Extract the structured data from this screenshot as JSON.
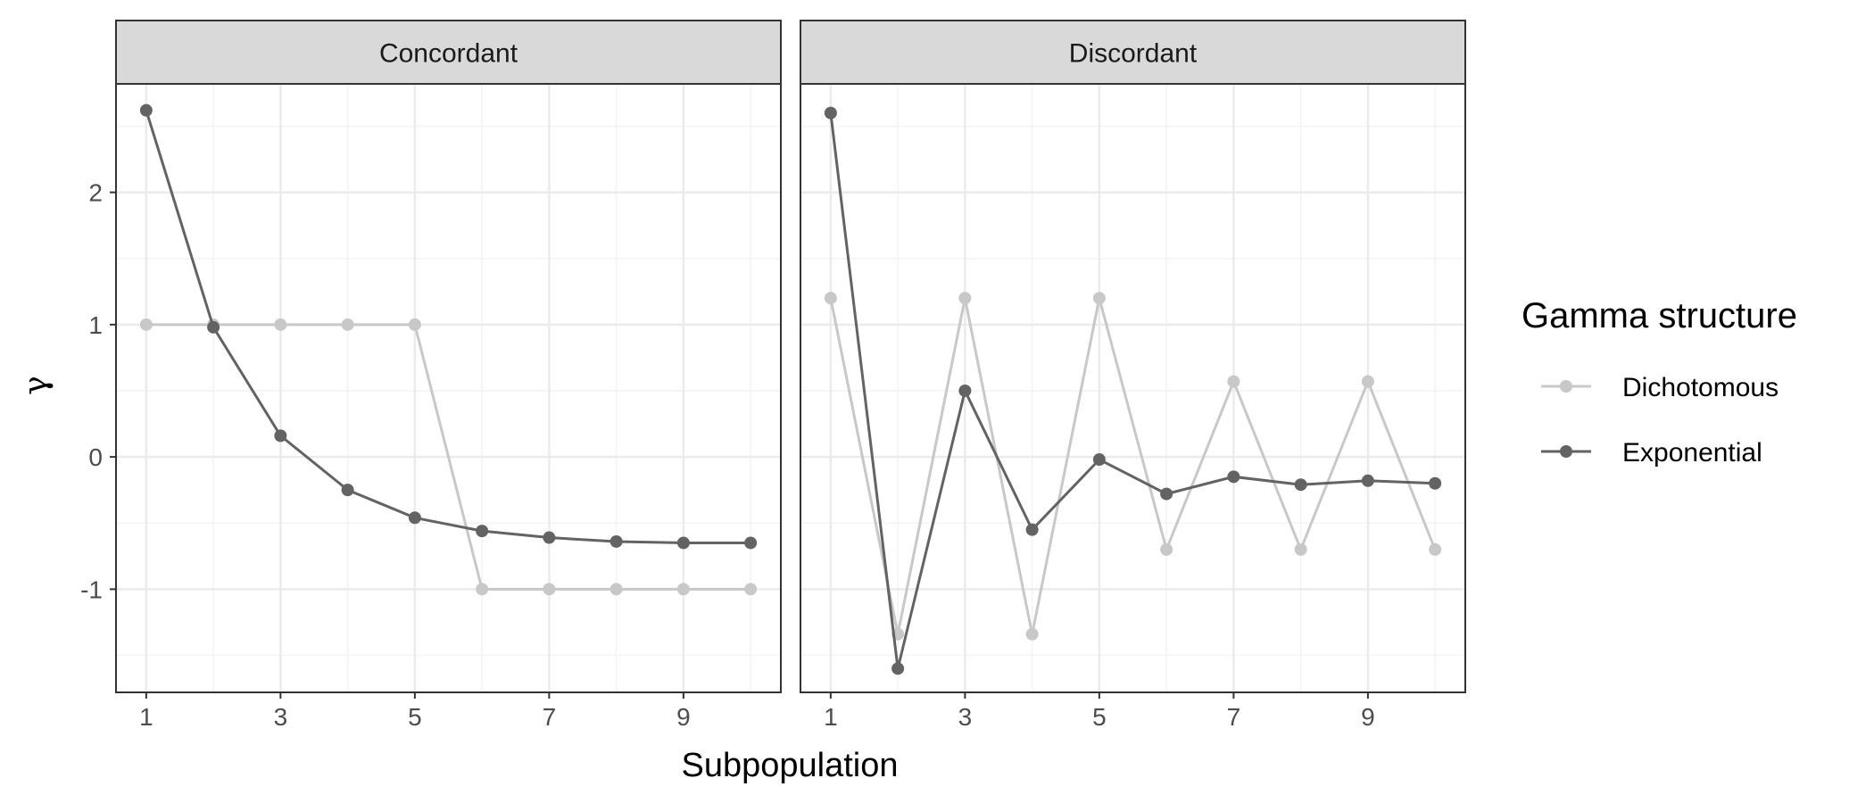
{
  "chart_data": {
    "type": "line",
    "xlabel": "Subpopulation",
    "ylabel": "γ",
    "x": [
      1,
      2,
      3,
      4,
      5,
      6,
      7,
      8,
      9,
      10
    ],
    "xticks": [
      1,
      3,
      5,
      7,
      9
    ],
    "xlim": [
      0.55,
      10.45
    ],
    "yticks": [
      -1,
      0,
      1,
      2
    ],
    "ylim": [
      -1.78,
      2.82
    ],
    "grid": true,
    "legend": {
      "title": "Gamma structure",
      "position": "right",
      "entries": [
        "Dichotomous",
        "Exponential"
      ]
    },
    "colors": {
      "Dichotomous": "#c8c8c8",
      "Exponential": "#636363",
      "strip_bg": "#d9d9d9",
      "grid_major": "#ebebeb",
      "grid_minor": "#f3f3f3",
      "border": "#333333"
    },
    "panels": [
      {
        "title": "Concordant",
        "series": [
          {
            "name": "Dichotomous",
            "values": [
              1,
              1,
              1,
              1,
              1,
              -1,
              -1,
              -1,
              -1,
              -1
            ]
          },
          {
            "name": "Exponential",
            "values": [
              2.62,
              0.98,
              0.16,
              -0.25,
              -0.46,
              -0.56,
              -0.61,
              -0.64,
              -0.65,
              -0.65
            ]
          }
        ]
      },
      {
        "title": "Discordant",
        "series": [
          {
            "name": "Dichotomous",
            "values": [
              1.2,
              -1.34,
              1.2,
              -1.34,
              1.2,
              -0.7,
              0.57,
              -0.7,
              0.57,
              -0.7
            ]
          },
          {
            "name": "Exponential",
            "values": [
              2.6,
              -1.6,
              0.5,
              -0.55,
              -0.02,
              -0.28,
              -0.15,
              -0.21,
              -0.18,
              -0.2
            ]
          }
        ]
      }
    ]
  }
}
